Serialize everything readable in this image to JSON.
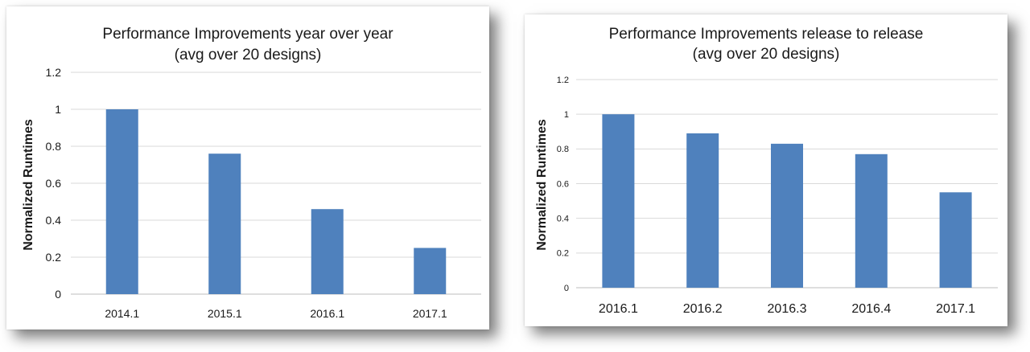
{
  "chart_data": [
    {
      "type": "bar",
      "title": "Performance Improvements year over year",
      "subtitle": "(avg over 20 designs)",
      "xlabel": "",
      "ylabel": "Normalized Runtimes",
      "categories": [
        "2014.1",
        "2015.1",
        "2016.1",
        "2017.1"
      ],
      "values": [
        1,
        0.76,
        0.46,
        0.25
      ],
      "ylim": [
        0,
        1.2
      ],
      "yticks": [
        "0",
        "0.2",
        "0.4",
        "0.6",
        "0.8",
        "1",
        "1.2"
      ],
      "grid": true,
      "bar_color": "#4f81bd"
    },
    {
      "type": "bar",
      "title": "Performance Improvements release to release",
      "subtitle": "(avg over 20 designs)",
      "xlabel": "",
      "ylabel": "Normalized Runtimes",
      "categories": [
        "2016.1",
        "2016.2",
        "2016.3",
        "2016.4",
        "2017.1"
      ],
      "values": [
        1,
        0.89,
        0.83,
        0.77,
        0.55
      ],
      "ylim": [
        0,
        1.2
      ],
      "yticks": [
        "0",
        "0.2",
        "0.4",
        "0.6",
        "0.8",
        "1",
        "1.2"
      ],
      "grid": true,
      "bar_color": "#4f81bd"
    }
  ]
}
